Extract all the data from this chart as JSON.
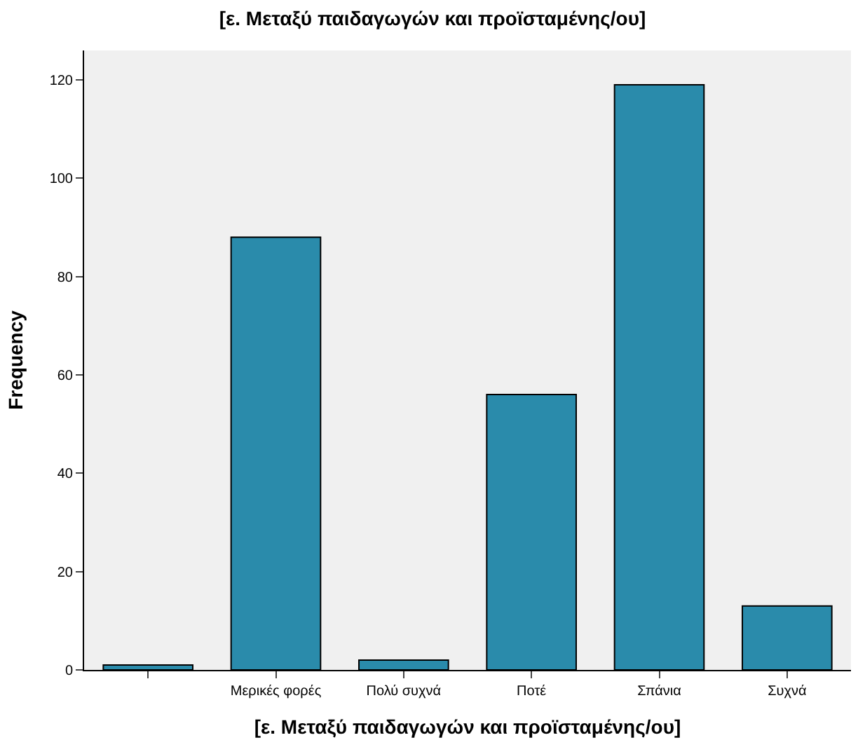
{
  "chart_data": {
    "type": "bar",
    "title": "[ε. Μεταξύ παιδαγωγών και προϊσταμένης/ου]",
    "xlabel": "[ε. Μεταξύ παιδαγωγών και προϊσταμένης/ου]",
    "ylabel": "Frequency",
    "categories": [
      null,
      "Μερικές φορές",
      "Πολύ συχνά",
      "Ποτέ",
      "Σπάνια",
      "Συχνά"
    ],
    "values": [
      1,
      88,
      2,
      56,
      119,
      13
    ],
    "color": "#2a8bab",
    "ylim": [
      0,
      126
    ],
    "yticks": [
      0,
      20,
      40,
      60,
      80,
      100,
      120
    ]
  }
}
